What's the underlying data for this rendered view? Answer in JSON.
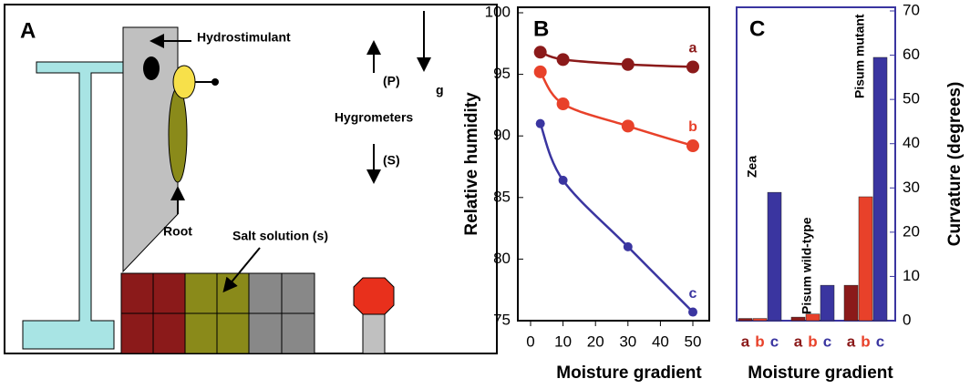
{
  "diagram": {
    "panel": "A",
    "labels": {
      "hydrostimulant": "Hydrostimulant",
      "root": "Root",
      "salt": "Salt solution (s)",
      "hygrometers": "Hygrometers",
      "p": "(P)",
      "s": "(S)",
      "g": "g"
    }
  },
  "chart_data": [
    {
      "type": "line",
      "title": "B",
      "x_label": "Moisture gradient",
      "y_label": "Relative humidity",
      "x": [
        3,
        10,
        30,
        50
      ],
      "series": [
        {
          "name": "a",
          "color": "#8b1a1a",
          "values": [
            96.8,
            96.2,
            95.8,
            95.6
          ]
        },
        {
          "name": "b",
          "color": "#e8412a",
          "values": [
            95.2,
            92.6,
            90.8,
            89.2
          ]
        },
        {
          "name": "c",
          "color": "#3a35a0",
          "values": [
            91.0,
            86.4,
            81.0,
            75.7
          ]
        }
      ],
      "xlim": [
        0,
        50
      ],
      "xticks": [
        0,
        10,
        20,
        30,
        40,
        50
      ],
      "ylim": [
        75,
        100
      ],
      "yticks": [
        75,
        80,
        85,
        90,
        95,
        100
      ]
    },
    {
      "type": "bar",
      "title": "C",
      "x_label": "Moisture gradient",
      "y_label": "Curvature (degrees)",
      "categories": [
        "Zea",
        "Pisum wild-type",
        "Pisum mutant"
      ],
      "series": [
        {
          "name": "a",
          "color": "#8b1a1a",
          "values": [
            0.5,
            0.8,
            8
          ]
        },
        {
          "name": "b",
          "color": "#e8412a",
          "values": [
            0.5,
            1.5,
            28
          ]
        },
        {
          "name": "c",
          "color": "#3a35a0",
          "values": [
            29,
            8,
            59.5
          ]
        }
      ],
      "ylim": [
        0,
        70
      ],
      "yticks": [
        0,
        10,
        20,
        30,
        40,
        50,
        60,
        70
      ]
    }
  ]
}
